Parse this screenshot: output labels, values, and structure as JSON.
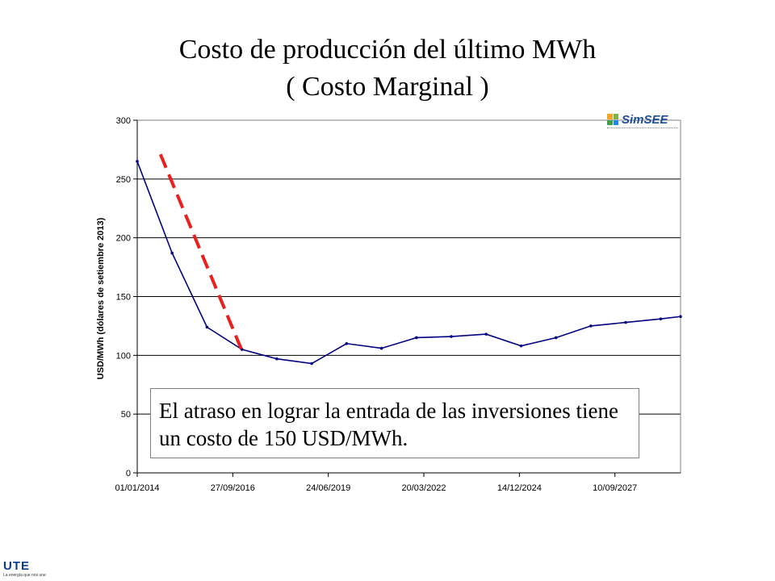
{
  "title_line1": "Costo de producción del último MWh",
  "title_line2": "( Costo Marginal )",
  "note": "El atraso en lograr la entrada de las inversiones tiene un costo de 150 USD/MWh.",
  "logo_simsee": "SimSEE",
  "logo_ute": "UTE",
  "logo_ute_slogan": "La energía que nos une",
  "colors": {
    "series": "#000080",
    "dashed": "#e8211f",
    "grid": "#000000"
  },
  "chart_data": {
    "type": "line",
    "ylabel": "USD/MWh (dólares de setiembre 2013)",
    "ylim": [
      0,
      300
    ],
    "yticks": [
      0,
      50,
      100,
      150,
      200,
      250,
      300
    ],
    "x_axis_type": "date",
    "xlim": [
      "2014-01-01",
      "2029-07-28"
    ],
    "xtick_labels": [
      "01/01/2014",
      "27/09/2016",
      "24/06/2019",
      "20/03/2022",
      "14/12/2024",
      "10/09/2027"
    ],
    "xtick_dates": [
      "2014-01-01",
      "2016-09-27",
      "2019-06-24",
      "2022-03-20",
      "2024-12-14",
      "2027-09-10"
    ],
    "grid": "horizontal",
    "series": [
      {
        "x": [
          "2014-01-01",
          "2015-01-01",
          "2016-01-01",
          "2017-01-01",
          "2018-01-01",
          "2019-01-01",
          "2020-01-01",
          "2021-01-01",
          "2022-01-01",
          "2023-01-01",
          "2024-01-01",
          "2025-01-01",
          "2026-01-01",
          "2027-01-01",
          "2028-01-01",
          "2029-01-01",
          "2029-07-28"
        ],
        "values": [
          265,
          187,
          124,
          105,
          97,
          93,
          110,
          106,
          115,
          116,
          118,
          108,
          115,
          125,
          128,
          131,
          133
        ]
      }
    ],
    "annotation_line": {
      "style": "dashed",
      "x": [
        "2014-09-01",
        "2017-01-01"
      ],
      "values": [
        271,
        104
      ]
    }
  }
}
